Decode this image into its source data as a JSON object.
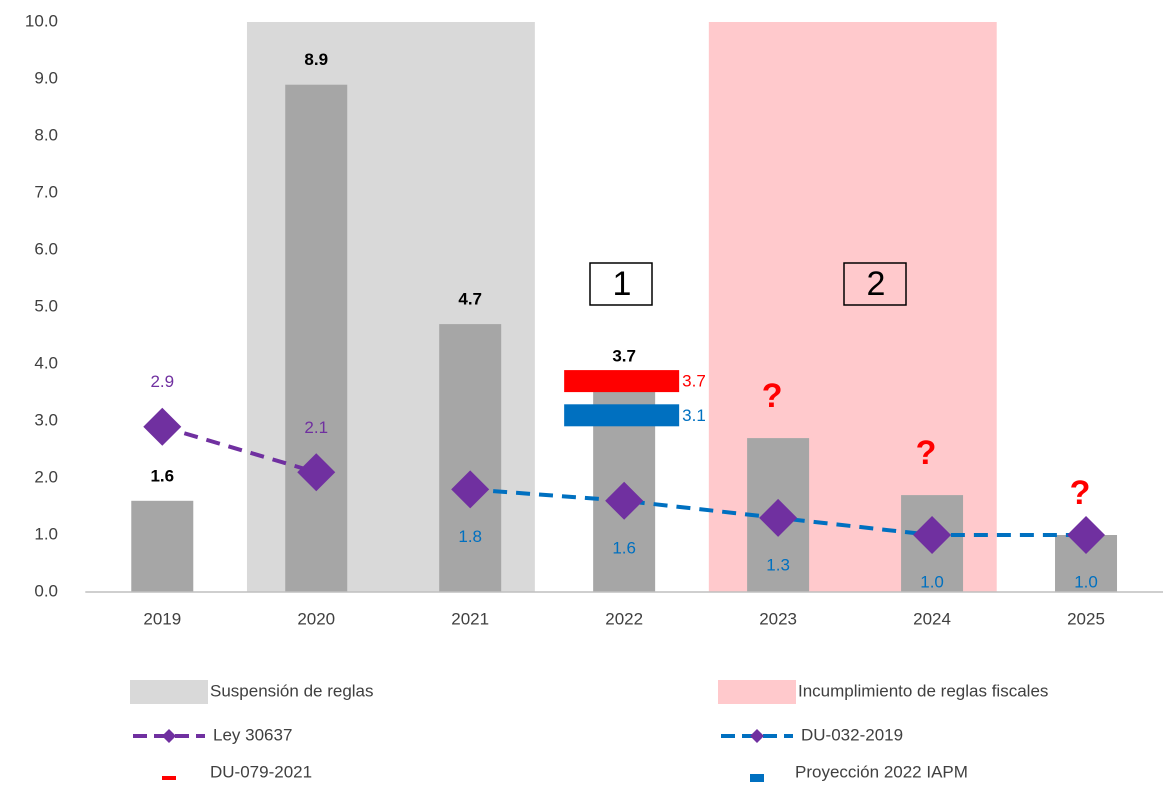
{
  "chart_data": {
    "type": "bar",
    "categories": [
      "2019",
      "2020",
      "2021",
      "2022",
      "2023",
      "2024",
      "2025"
    ],
    "values": [
      1.6,
      8.9,
      4.7,
      3.7,
      2.7,
      1.7,
      1.0
    ],
    "value_labels": [
      "1.6",
      "8.9",
      "4.7",
      "3.7",
      null,
      null,
      null
    ],
    "color": "#a6a6a6",
    "ylim": [
      0,
      10
    ],
    "yticks": [
      {
        "value": 0,
        "label": "0.0"
      },
      {
        "value": 1,
        "label": "1.0"
      },
      {
        "value": 2,
        "label": "2.0"
      },
      {
        "value": 3,
        "label": "3.0"
      },
      {
        "value": 4,
        "label": "4.0"
      },
      {
        "value": 5,
        "label": "5.0"
      },
      {
        "value": 6,
        "label": "6.0"
      },
      {
        "value": 7,
        "label": "7.0"
      },
      {
        "value": 8,
        "label": "8.0"
      },
      {
        "value": 9,
        "label": "9.0"
      },
      {
        "value": 10,
        "label": "10.0"
      }
    ],
    "regions": [
      {
        "name": "Suspensión de reglas",
        "start": "2020",
        "end": "2021",
        "color": "#d9d9d9"
      },
      {
        "name": "Incumplimiento de reglas fiscales",
        "start": "2023",
        "end": "2024",
        "color": "#ffc9cc"
      }
    ],
    "series": [
      {
        "name": "Ley 30637",
        "type": "line",
        "color": "#7030a0",
        "marker_color": "#7030a0",
        "values": [
          2.9,
          2.1,
          null,
          null,
          null,
          null,
          null
        ],
        "value_labels": [
          "2.9",
          "2.1",
          null,
          null,
          null,
          null,
          null
        ]
      },
      {
        "name": "DU-032-2019",
        "type": "line",
        "color": "#0070c0",
        "marker_color": "#7030a0",
        "values": [
          null,
          null,
          1.8,
          1.6,
          1.3,
          1.0,
          1.0
        ],
        "value_labels": [
          null,
          null,
          "1.8",
          "1.6",
          "1.3",
          "1.0",
          "1.0"
        ]
      },
      {
        "name": "DU-079-2021",
        "type": "level",
        "color": "#ff0000",
        "values": [
          null,
          null,
          null,
          3.7,
          null,
          null,
          null
        ],
        "value_labels": [
          null,
          null,
          null,
          "3.7",
          null,
          null,
          null
        ]
      },
      {
        "name": "Proyección 2022 IAPM",
        "type": "level",
        "color": "#0070c0",
        "values": [
          null,
          null,
          null,
          3.1,
          null,
          null,
          null
        ],
        "value_labels": [
          null,
          null,
          null,
          "3.1",
          null,
          null,
          null
        ]
      }
    ],
    "annotations": [
      {
        "text": "?",
        "category": "2023"
      },
      {
        "text": "?",
        "category": "2024"
      },
      {
        "text": "?",
        "category": "2025"
      },
      {
        "text": "1"
      },
      {
        "text": "2"
      }
    ]
  }
}
